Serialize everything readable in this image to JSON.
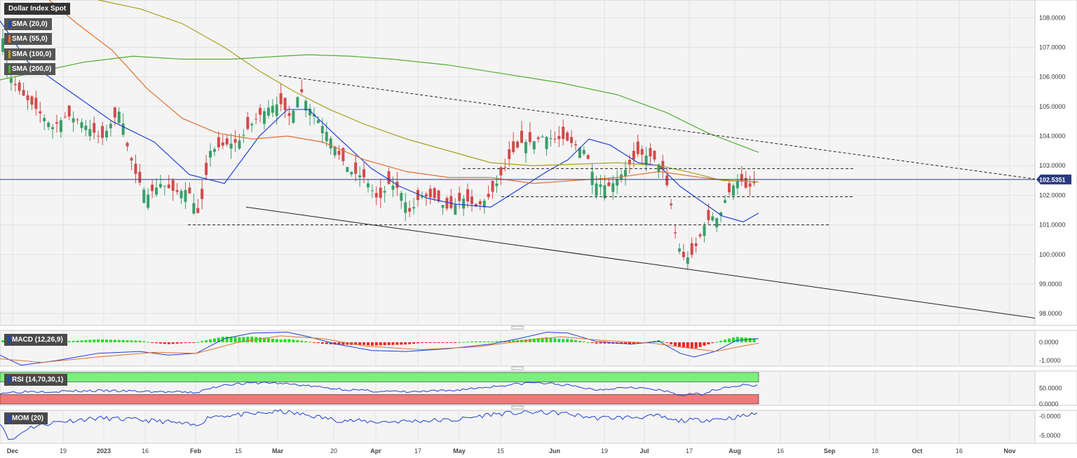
{
  "chart_data": [
    {
      "type": "candlestick",
      "title": "Dollar Index Spot",
      "last_price_label": "102.5351",
      "ylim": [
        97.6,
        108.6
      ],
      "y_ticks": [
        "108.0000",
        "107.0000",
        "106.0000",
        "105.0000",
        "104.0000",
        "103.0000",
        "102.0000",
        "101.0000",
        "100.0000",
        "99.0000",
        "98.0000"
      ],
      "y_tick_values": [
        108,
        107,
        106,
        105,
        104,
        103,
        102,
        101,
        100,
        99,
        98
      ],
      "x_axis": {
        "tick_labels": [
          "Dec",
          "19",
          "2023",
          "16",
          "Feb",
          "15",
          "Mar",
          "20",
          "Apr",
          "17",
          "May",
          "15",
          "Jun",
          "19",
          "Jul",
          "17",
          "Aug",
          "16",
          "Sep",
          "18",
          "Oct",
          "16",
          "Nov"
        ],
        "bold_labels": [
          "Dec",
          "2023",
          "Feb",
          "Mar",
          "Apr",
          "May",
          "Jun",
          "Jul",
          "Aug",
          "Sep",
          "Oct",
          "Nov"
        ]
      },
      "indicators": [
        {
          "label": "SMA (20,0)",
          "color": "#2040d0"
        },
        {
          "label": "SMA (55,0)",
          "color": "#e07030"
        },
        {
          "label": "SMA (100,0)",
          "color": "#a8a020"
        },
        {
          "label": "SMA (200,0)",
          "color": "#50b030"
        }
      ],
      "series": [
        {
          "name": "SMA (20,0)",
          "color": "#2040d0",
          "points": [
            [
              0,
              107.9
            ],
            [
              40,
              106.5
            ],
            [
              100,
              105.5
            ],
            [
              160,
              104.5
            ],
            [
              220,
              103.8
            ],
            [
              270,
              102.7
            ],
            [
              320,
              102.4
            ],
            [
              370,
              104.0
            ],
            [
              410,
              104.9
            ],
            [
              440,
              104.9
            ],
            [
              480,
              104.0
            ],
            [
              530,
              102.9
            ],
            [
              570,
              102.3
            ],
            [
              610,
              101.9
            ],
            [
              650,
              101.7
            ],
            [
              700,
              101.6
            ],
            [
              740,
              102.2
            ],
            [
              780,
              102.8
            ],
            [
              810,
              103.2
            ],
            [
              840,
              103.9
            ],
            [
              870,
              103.7
            ],
            [
              910,
              103.1
            ],
            [
              940,
              103.0
            ],
            [
              970,
              102.3
            ],
            [
              1000,
              101.8
            ],
            [
              1030,
              101.3
            ],
            [
              1060,
              101.1
            ],
            [
              1082,
              101.4
            ]
          ]
        },
        {
          "name": "SMA (55,0)",
          "color": "#e07030",
          "points": [
            [
              70,
              108.6
            ],
            [
              110,
              107.8
            ],
            [
              160,
              106.9
            ],
            [
              210,
              105.6
            ],
            [
              260,
              104.6
            ],
            [
              310,
              104.1
            ],
            [
              360,
              103.9
            ],
            [
              410,
              104.0
            ],
            [
              460,
              103.8
            ],
            [
              520,
              103.2
            ],
            [
              580,
              102.8
            ],
            [
              640,
              102.6
            ],
            [
              700,
              102.6
            ],
            [
              760,
              102.4
            ],
            [
              820,
              102.5
            ],
            [
              880,
              102.6
            ],
            [
              940,
              102.8
            ],
            [
              1000,
              102.6
            ],
            [
              1040,
              102.5
            ],
            [
              1082,
              102.45
            ]
          ]
        },
        {
          "name": "SMA (100,0)",
          "color": "#a8a020",
          "points": [
            [
              140,
              108.6
            ],
            [
              200,
              108.3
            ],
            [
              260,
              107.8
            ],
            [
              320,
              107.0
            ],
            [
              370,
              106.2
            ],
            [
              420,
              105.5
            ],
            [
              470,
              104.9
            ],
            [
              520,
              104.4
            ],
            [
              580,
              103.9
            ],
            [
              640,
              103.5
            ],
            [
              700,
              103.1
            ],
            [
              760,
              103.0
            ],
            [
              820,
              103.05
            ],
            [
              880,
              103.1
            ],
            [
              940,
              103.0
            ],
            [
              980,
              102.8
            ],
            [
              1030,
              102.5
            ],
            [
              1082,
              102.45
            ]
          ]
        },
        {
          "name": "SMA (200,0)",
          "color": "#50b030",
          "points": [
            [
              0,
              105.9
            ],
            [
              60,
              106.2
            ],
            [
              120,
              106.5
            ],
            [
              190,
              106.7
            ],
            [
              260,
              106.6
            ],
            [
              330,
              106.6
            ],
            [
              400,
              106.7
            ],
            [
              440,
              106.75
            ],
            [
              500,
              106.7
            ],
            [
              560,
              106.6
            ],
            [
              640,
              106.4
            ],
            [
              720,
              106.1
            ],
            [
              800,
              105.8
            ],
            [
              880,
              105.4
            ],
            [
              950,
              104.8
            ],
            [
              1010,
              104.1
            ],
            [
              1082,
              103.45
            ]
          ]
        }
      ],
      "trendlines": [
        {
          "style": "dashed",
          "from": [
            398,
            106.05
          ],
          "to": [
            1476,
            102.55
          ]
        },
        {
          "style": "solid",
          "from": [
            351,
            101.6
          ],
          "to": [
            1476,
            97.85
          ]
        },
        {
          "style": "dashed",
          "from": [
            268,
            101.0
          ],
          "to": [
            1184,
            101.0
          ]
        },
        {
          "style": "dashed",
          "from": [
            660,
            102.9
          ],
          "to": [
            1218,
            102.9
          ]
        },
        {
          "style": "dashed",
          "from": [
            715,
            101.95
          ],
          "to": [
            1218,
            101.95
          ]
        }
      ],
      "price_line": 102.5351
    },
    {
      "type": "histogram+line",
      "title": "MACD (12,26,9)",
      "ylim": [
        -1.3,
        0.65
      ],
      "y_ticks": [
        "0.0000",
        "-1.0000"
      ],
      "y_tick_values": [
        0,
        -1
      ]
    },
    {
      "type": "line",
      "title": "RSI (14,70,30,1)",
      "ylim": [
        0,
        100
      ],
      "y_ticks": [
        "50.0000",
        "0.0000"
      ],
      "y_tick_values": [
        50,
        0
      ],
      "bands": {
        "overbought": 70,
        "oversold": 30
      }
    },
    {
      "type": "line",
      "title": "MOM (20)",
      "ylim": [
        -7,
        1.5
      ],
      "y_ticks": [
        "-0.0000",
        "-5.0000"
      ],
      "y_tick_values": [
        0,
        -5
      ]
    }
  ]
}
